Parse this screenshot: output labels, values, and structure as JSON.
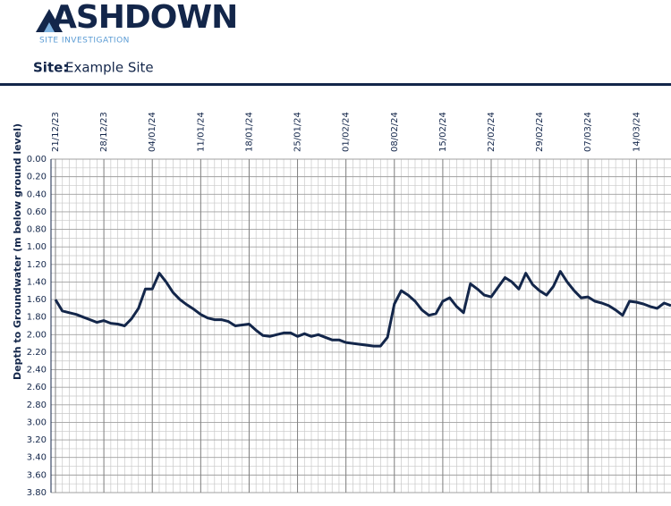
{
  "header": {
    "logo": "ASHDOWN",
    "logo_subtitle": "SITE INVESTIGATION",
    "site_label": "Site:",
    "site_name": "Example Site"
  },
  "chart_data": {
    "type": "line",
    "y_label": "Depth to Groundwater (m below ground level)",
    "color": "#13264a",
    "y_inverted": true,
    "grid": true,
    "xlim": [
      "21/12/23",
      "19/03/24"
    ],
    "xticks": [
      "21/12/23",
      "28/12/23",
      "04/01/24",
      "11/01/24",
      "18/01/24",
      "25/01/24",
      "01/02/24",
      "08/02/24",
      "15/02/24",
      "22/02/24",
      "29/02/24",
      "07/03/24",
      "14/03/24"
    ],
    "ylim": [
      0,
      3.8
    ],
    "yticks": [
      {
        "value": 0,
        "label": "0.00"
      },
      {
        "value": 0.2,
        "label": "0.20"
      },
      {
        "value": 0.4,
        "label": "0.40"
      },
      {
        "value": 0.6,
        "label": "0.60"
      },
      {
        "value": 0.8,
        "label": "0.80"
      },
      {
        "value": 1,
        "label": "1.00"
      },
      {
        "value": 1.2,
        "label": "1.20"
      },
      {
        "value": 1.4,
        "label": "1.40"
      },
      {
        "value": 1.6,
        "label": "1.60"
      },
      {
        "value": 1.8,
        "label": "1.80"
      },
      {
        "value": 2,
        "label": "2.00"
      },
      {
        "value": 2.2,
        "label": "2.20"
      },
      {
        "value": 2.4,
        "label": "2.40"
      },
      {
        "value": 2.6,
        "label": "2.60"
      },
      {
        "value": 2.8,
        "label": "2.80"
      },
      {
        "value": 3,
        "label": "3.00"
      },
      {
        "value": 3.2,
        "label": "3.20"
      },
      {
        "value": 3.4,
        "label": "3.40"
      },
      {
        "value": 3.6,
        "label": "3.60"
      },
      {
        "value": 3.8,
        "label": "3.80"
      }
    ],
    "x": [
      "21/12/23",
      "22/12/23",
      "23/12/23",
      "24/12/23",
      "25/12/23",
      "26/12/23",
      "27/12/23",
      "28/12/23",
      "29/12/23",
      "30/12/23",
      "31/12/23",
      "01/01/24",
      "02/01/24",
      "03/01/24",
      "04/01/24",
      "05/01/24",
      "06/01/24",
      "07/01/24",
      "08/01/24",
      "09/01/24",
      "10/01/24",
      "11/01/24",
      "12/01/24",
      "13/01/24",
      "14/01/24",
      "15/01/24",
      "16/01/24",
      "17/01/24",
      "18/01/24",
      "19/01/24",
      "20/01/24",
      "21/01/24",
      "22/01/24",
      "23/01/24",
      "24/01/24",
      "25/01/24",
      "26/01/24",
      "27/01/24",
      "28/01/24",
      "29/01/24",
      "30/01/24",
      "31/01/24",
      "01/02/24",
      "02/02/24",
      "03/02/24",
      "04/02/24",
      "05/02/24",
      "06/02/24",
      "07/02/24",
      "08/02/24",
      "09/02/24",
      "10/02/24",
      "11/02/24",
      "12/02/24",
      "13/02/24",
      "14/02/24",
      "15/02/24",
      "16/02/24",
      "17/02/24",
      "18/02/24",
      "19/02/24",
      "20/02/24",
      "21/02/24",
      "22/02/24",
      "23/02/24",
      "24/02/24",
      "25/02/24",
      "26/02/24",
      "27/02/24",
      "28/02/24",
      "29/02/24",
      "01/03/24",
      "02/03/24",
      "03/03/24",
      "04/03/24",
      "05/03/24",
      "06/03/24",
      "07/03/24",
      "08/03/24",
      "09/03/24",
      "10/03/24",
      "11/03/24",
      "12/03/24",
      "13/03/24",
      "14/03/24",
      "15/03/24",
      "16/03/24",
      "17/03/24",
      "18/03/24",
      "19/03/24"
    ],
    "values": [
      1.6,
      1.73,
      1.75,
      1.77,
      1.8,
      1.83,
      1.86,
      1.84,
      1.87,
      1.88,
      1.9,
      1.82,
      1.7,
      1.48,
      1.48,
      1.3,
      1.4,
      1.52,
      1.6,
      1.66,
      1.71,
      1.77,
      1.81,
      1.83,
      1.83,
      1.85,
      1.9,
      1.89,
      1.88,
      1.95,
      2.01,
      2.02,
      2.0,
      1.98,
      1.98,
      2.02,
      1.99,
      2.02,
      2.0,
      2.03,
      2.06,
      2.06,
      2.09,
      2.1,
      2.11,
      2.12,
      2.13,
      2.13,
      2.03,
      1.65,
      1.5,
      1.55,
      1.62,
      1.72,
      1.78,
      1.76,
      1.62,
      1.58,
      1.68,
      1.75,
      1.42,
      1.48,
      1.55,
      1.57,
      1.46,
      1.35,
      1.4,
      1.48,
      1.3,
      1.43,
      1.5,
      1.55,
      1.45,
      1.28,
      1.4,
      1.5,
      1.58,
      1.57,
      1.62,
      1.64,
      1.67,
      1.72,
      1.78,
      1.62,
      1.63,
      1.65,
      1.68,
      1.7,
      1.64,
      1.67
    ]
  }
}
